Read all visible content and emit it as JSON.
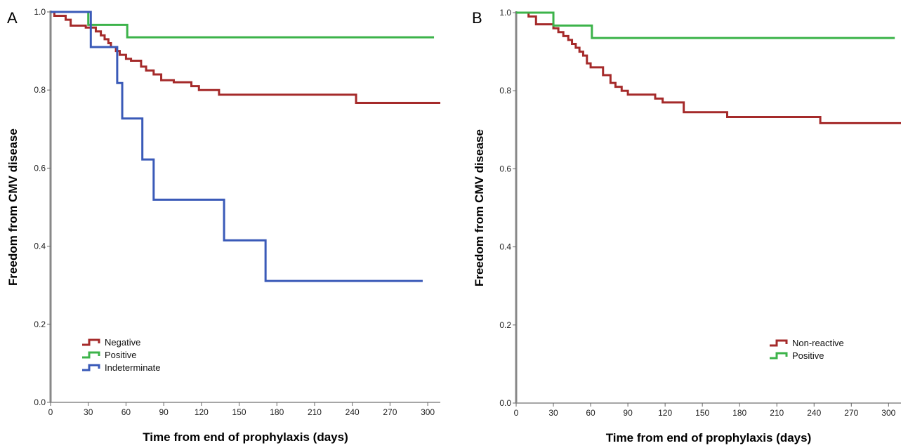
{
  "chart_data": [
    {
      "panel": "A",
      "type": "line",
      "step": true,
      "xlabel": "Time from end of prophylaxis (days)",
      "ylabel": "Freedom from CMV disease",
      "xlim": [
        0,
        310
      ],
      "ylim": [
        0,
        1.0
      ],
      "xticks": [
        "0",
        "30",
        "60",
        "90",
        "120",
        "150",
        "180",
        "210",
        "240",
        "270",
        "300"
      ],
      "yticks": [
        "0.0",
        "0.2",
        "0.4",
        "0.6",
        "0.8",
        "1.0"
      ],
      "legend_position": "bottom-left",
      "series": [
        {
          "name": "Negative",
          "color": "#a52a2a",
          "x": [
            0,
            3,
            12,
            16,
            28,
            36,
            40,
            43,
            46,
            48,
            52,
            55,
            60,
            64,
            72,
            76,
            82,
            88,
            98,
            112,
            118,
            134,
            243,
            310
          ],
          "y": [
            1.0,
            0.99,
            0.98,
            0.965,
            0.96,
            0.95,
            0.94,
            0.93,
            0.92,
            0.91,
            0.9,
            0.89,
            0.88,
            0.875,
            0.86,
            0.85,
            0.84,
            0.825,
            0.82,
            0.81,
            0.8,
            0.788,
            0.767,
            0.767
          ]
        },
        {
          "name": "Positive",
          "color": "#3cb34a",
          "x": [
            0,
            30,
            61,
            305
          ],
          "y": [
            1.0,
            0.967,
            0.935,
            0.935
          ]
        },
        {
          "name": "Indeterminate",
          "color": "#3a5ab8",
          "x": [
            0,
            32,
            53,
            55,
            57,
            73,
            82,
            138,
            171,
            296
          ],
          "y": [
            1.0,
            0.91,
            0.818,
            0.818,
            0.727,
            0.622,
            0.519,
            0.415,
            0.311,
            0.311
          ]
        }
      ]
    },
    {
      "panel": "B",
      "type": "line",
      "step": true,
      "xlabel": "Time from end of prophylaxis (days)",
      "ylabel": "Freedom from CMV disease",
      "xlim": [
        0,
        310
      ],
      "ylim": [
        0,
        1.0
      ],
      "xticks": [
        "0",
        "30",
        "60",
        "90",
        "120",
        "150",
        "180",
        "210",
        "240",
        "270",
        "300"
      ],
      "yticks": [
        "0.0",
        "0.2",
        "0.4",
        "0.6",
        "0.8",
        "1.0"
      ],
      "legend_position": "bottom-right",
      "series": [
        {
          "name": "Non-reactive",
          "color": "#a52a2a",
          "x": [
            0,
            10,
            16,
            30,
            34,
            38,
            42,
            45,
            48,
            51,
            54,
            57,
            60,
            70,
            76,
            80,
            85,
            90,
            112,
            118,
            135,
            170,
            245,
            310
          ],
          "y": [
            1.0,
            0.99,
            0.97,
            0.96,
            0.95,
            0.94,
            0.93,
            0.92,
            0.91,
            0.9,
            0.89,
            0.87,
            0.86,
            0.84,
            0.82,
            0.81,
            0.8,
            0.79,
            0.78,
            0.77,
            0.745,
            0.733,
            0.717,
            0.717
          ]
        },
        {
          "name": "Positive",
          "color": "#3cb34a",
          "x": [
            0,
            30,
            61,
            305
          ],
          "y": [
            1.0,
            0.967,
            0.935,
            0.935
          ]
        }
      ]
    }
  ]
}
